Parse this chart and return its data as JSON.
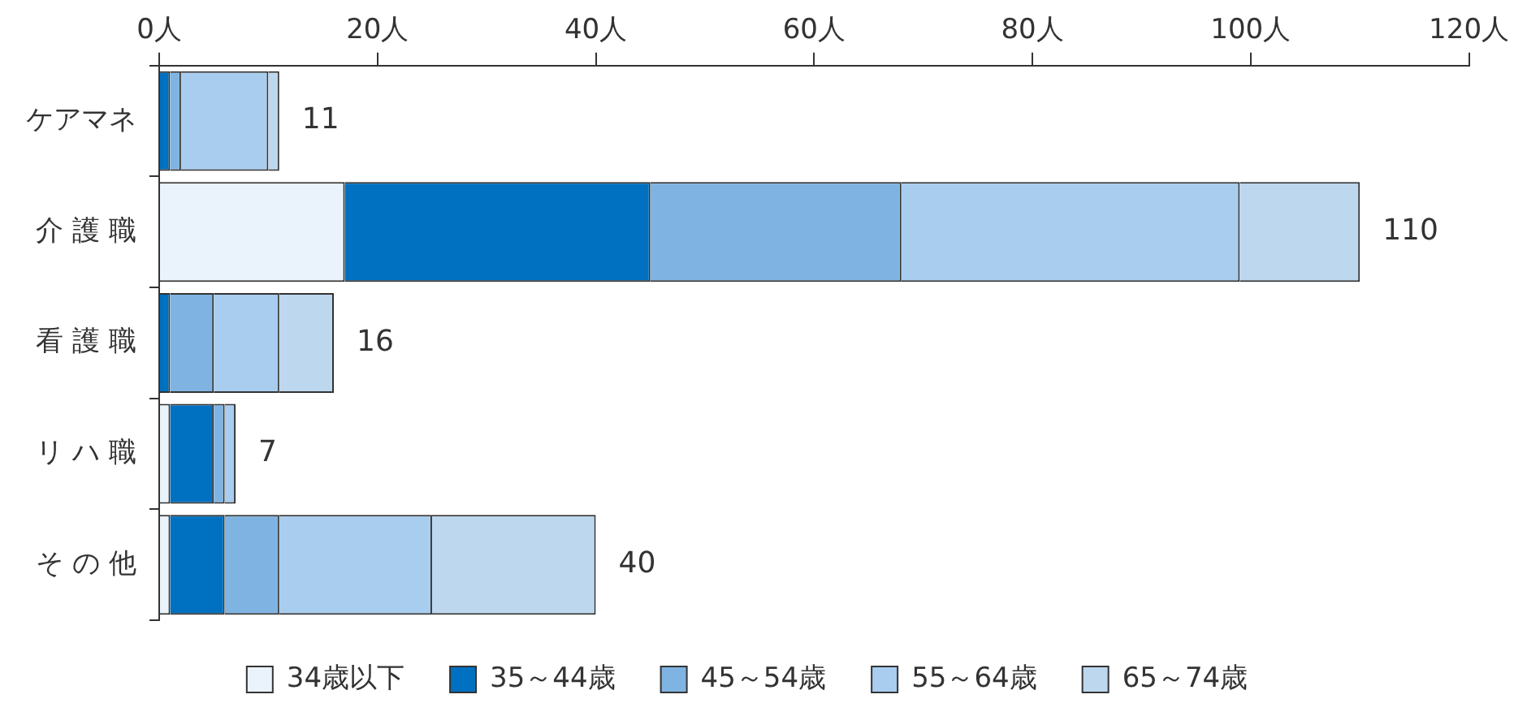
{
  "chart_data": {
    "type": "bar",
    "orientation": "horizontal",
    "stacked": true,
    "categories": [
      "ケアマネ",
      "介 護 職",
      "看 護 職",
      "リ ハ 職",
      "そ の 他"
    ],
    "series": [
      {
        "name": "34歳以下",
        "color": "#eaf3fb",
        "values": [
          0,
          17,
          0,
          1,
          1
        ]
      },
      {
        "name": "35～44歳",
        "color": "#0070c0",
        "values": [
          1,
          28,
          1,
          4,
          5
        ]
      },
      {
        "name": "45～54歳",
        "color": "#7fb4e2",
        "values": [
          1,
          23,
          4,
          1,
          5
        ]
      },
      {
        "name": "55～64歳",
        "color": "#a9cdef",
        "values": [
          8,
          31,
          6,
          1,
          14
        ]
      },
      {
        "name": "65～74歳",
        "color": "#bdd7ee",
        "values": [
          1,
          11,
          5,
          0,
          15
        ]
      }
    ],
    "totals": [
      "11",
      "110",
      "16",
      "7",
      "40"
    ],
    "xlim": [
      0,
      120
    ],
    "xticks": [
      {
        "value": 0,
        "label": "0人"
      },
      {
        "value": 20,
        "label": "20人"
      },
      {
        "value": 40,
        "label": "40人"
      },
      {
        "value": 60,
        "label": "60人"
      },
      {
        "value": 80,
        "label": "80人"
      },
      {
        "value": 100,
        "label": "100人"
      },
      {
        "value": 120,
        "label": "120人"
      }
    ],
    "grid": false,
    "legend": "bottom"
  }
}
